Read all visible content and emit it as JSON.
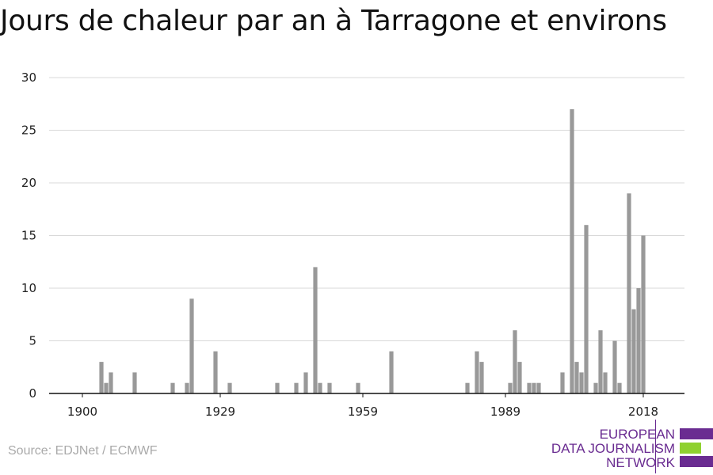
{
  "title": "Jours de chaleur par an à Tarragone et environs",
  "source": "Source: EDJNet / ECMWF",
  "logo": {
    "lines": [
      "EUROPEAN",
      "DATA JOURNALISM",
      "NETWORK"
    ],
    "colors": {
      "purple": "#6a2c91",
      "green": "#8fd130"
    }
  },
  "chart_data": {
    "type": "bar",
    "title": "Jours de chaleur par an à Tarragone et environs",
    "xlabel": "",
    "ylabel": "",
    "ylim": [
      0,
      30
    ],
    "xlim": [
      1900,
      2018
    ],
    "yticks": [
      0,
      5,
      10,
      15,
      20,
      25,
      30
    ],
    "xticks": [
      1900,
      1929,
      1959,
      1989,
      2018
    ],
    "grid": true,
    "bar_color": "#999999",
    "x": [
      1904,
      1905,
      1906,
      1911,
      1919,
      1922,
      1923,
      1928,
      1931,
      1941,
      1945,
      1947,
      1949,
      1950,
      1952,
      1958,
      1965,
      1981,
      1983,
      1984,
      1990,
      1991,
      1992,
      1994,
      1995,
      1996,
      2001,
      2003,
      2004,
      2005,
      2006,
      2008,
      2009,
      2010,
      2012,
      2013,
      2015,
      2016,
      2017
    ],
    "values": [
      3,
      1,
      2,
      2,
      1,
      1,
      9,
      4,
      1,
      1,
      1,
      2,
      12,
      1,
      1,
      1,
      4,
      1,
      4,
      3,
      1,
      6,
      3,
      1,
      1,
      1,
      2,
      27,
      3,
      2,
      16,
      1,
      6,
      2,
      5,
      1,
      19,
      8,
      10
    ],
    "extra_point": {
      "x": 2018,
      "value": 15
    }
  }
}
